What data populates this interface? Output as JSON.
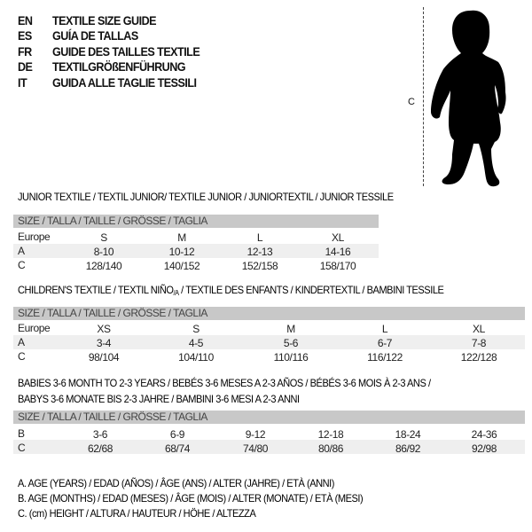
{
  "header": [
    {
      "code": "EN",
      "text": "TEXTILE SIZE GUIDE"
    },
    {
      "code": "ES",
      "text": "GUÍA DE TALLAS"
    },
    {
      "code": "FR",
      "text": "GUIDE DES TAILLES TEXTILE"
    },
    {
      "code": "DE",
      "text": "TEXTILGRÖßENFÜHRUNG"
    },
    {
      "code": "IT",
      "text": "GUIDA ALLE TAGLIE TESSILI"
    }
  ],
  "figure": {
    "measure_label": "C"
  },
  "size_header": "SIZE / TALLA / TAILLE / GRÖSSE / TAGLIA",
  "tables": [
    {
      "title": "JUNIOR TEXTILE / TEXTIL JUNIOR/ TEXTILE JUNIOR / JUNIORTEXTIL / JUNIOR TESSILE",
      "rows": [
        {
          "label": "Europe",
          "values": [
            "S",
            "M",
            "L",
            "XL"
          ]
        },
        {
          "label": "A",
          "values": [
            "8-10",
            "10-12",
            "12-13",
            "14-16"
          ]
        },
        {
          "label": "C",
          "values": [
            "128/140",
            "140/152",
            "152/158",
            "158/170"
          ]
        }
      ]
    },
    {
      "title_main": "CHILDREN'S TEXTILE / TEXTIL NIÑO",
      "title_sub": "/A",
      "title_rest": " / TEXTILE DES ENFANTS / KINDERTEXTIL / BAMBINI TESSILE",
      "rows": [
        {
          "label": "Europe",
          "values": [
            "XS",
            "S",
            "M",
            "L",
            "XL"
          ]
        },
        {
          "label": "A",
          "values": [
            "3-4",
            "4-5",
            "5-6",
            "6-7",
            "7-8"
          ]
        },
        {
          "label": "C",
          "values": [
            "98/104",
            "104/110",
            "110/116",
            "116/122",
            "122/128"
          ]
        }
      ]
    },
    {
      "title_line1": "BABIES 3-6 MONTH TO 2-3 YEARS / BEBÉS 3-6 MESES A 2-3 AÑOS / BÉBÉS 3-6 MOIS À 2-3 ANS /",
      "title_line2": "BABYS 3-6 MONATE BIS 2-3 JAHRE / BAMBINI 3-6 MESI A 2-3 ANNI",
      "rows": [
        {
          "label": "B",
          "values": [
            "3-6",
            "6-9",
            "9-12",
            "12-18",
            "18-24",
            "24-36"
          ]
        },
        {
          "label": "C",
          "values": [
            "62/68",
            "68/74",
            "74/80",
            "80/86",
            "86/92",
            "92/98"
          ]
        }
      ]
    }
  ],
  "legend": [
    "A. AGE (YEARS) / EDAD (AÑOS) / ÂGE (ANS) / ALTER (JAHRE) / ETÀ (ANNI)",
    "B. AGE (MONTHS) / EDAD (MESES) / ÂGE (MOIS) / ALTER (MONATE) / ETÀ (MESI)",
    "C. (cm) HEIGHT / ALTURA / HAUTEUR / HÖHE / ALTEZZA"
  ]
}
